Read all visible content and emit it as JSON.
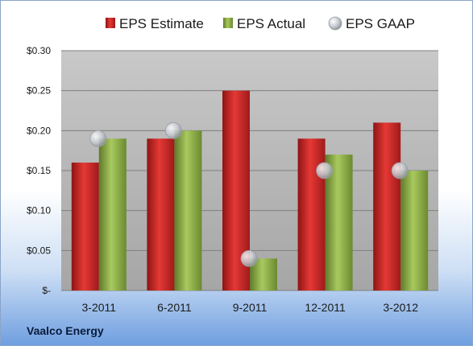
{
  "chart_data": {
    "type": "bar",
    "title": "",
    "xlabel": "",
    "ylabel": "",
    "ylim": [
      0,
      0.3
    ],
    "y_ticks": [
      {
        "value": 0.3,
        "label": "$0.30"
      },
      {
        "value": 0.25,
        "label": "$0.25"
      },
      {
        "value": 0.2,
        "label": "$0.20"
      },
      {
        "value": 0.15,
        "label": "$0.15"
      },
      {
        "value": 0.1,
        "label": "$0.10"
      },
      {
        "value": 0.05,
        "label": "$0.05"
      },
      {
        "value": 0.0,
        "label": "$-"
      }
    ],
    "categories": [
      "3-2011",
      "6-2011",
      "9-2011",
      "12-2011",
      "3-2012"
    ],
    "series": [
      {
        "name": "EPS Estimate",
        "kind": "bar",
        "color": "#c62828",
        "values": [
          0.16,
          0.19,
          0.25,
          0.19,
          0.21
        ]
      },
      {
        "name": "EPS Actual",
        "kind": "bar",
        "color": "#8fb04a",
        "values": [
          0.19,
          0.2,
          0.04,
          0.17,
          0.15
        ]
      },
      {
        "name": "EPS GAAP",
        "kind": "marker",
        "color": "#b8bcc4",
        "values": [
          0.19,
          0.2,
          0.04,
          0.15,
          0.15
        ]
      }
    ],
    "grid": true,
    "legend_position": "top"
  },
  "footer": {
    "company": "Vaalco Energy"
  }
}
